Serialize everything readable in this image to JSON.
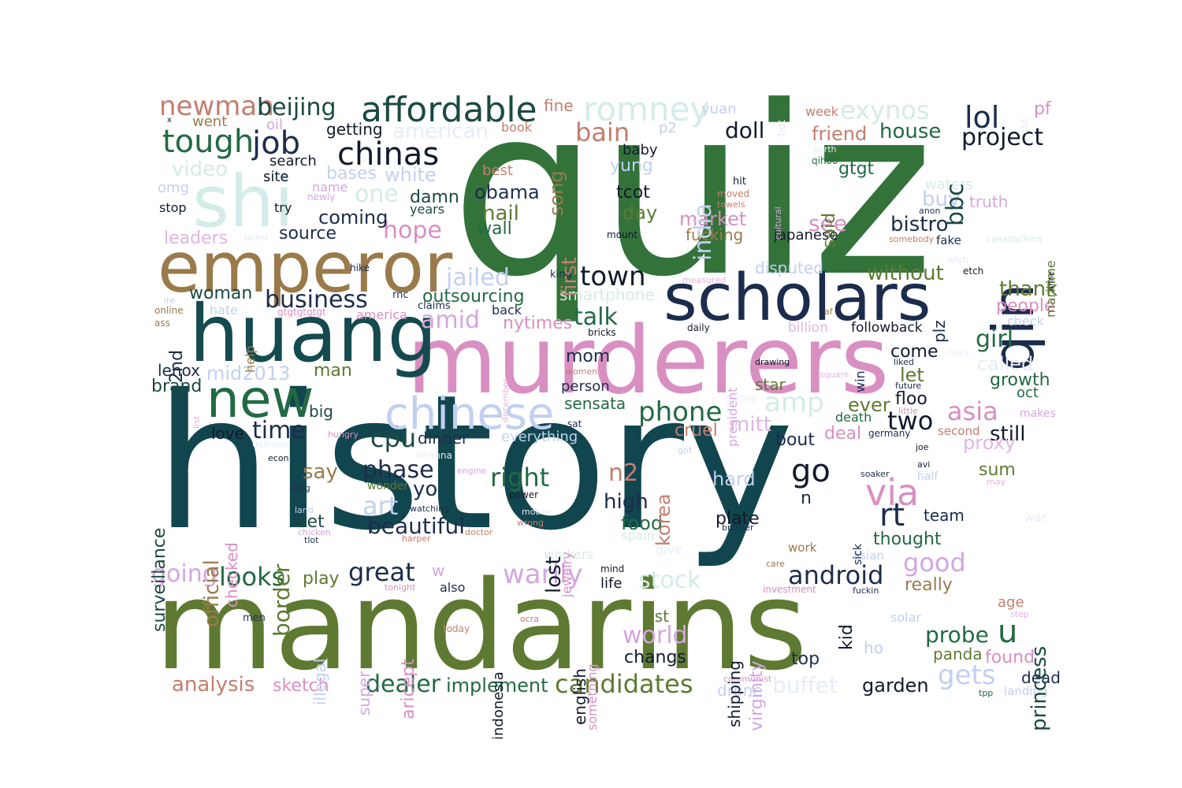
{
  "words": [
    {
      "text": "history",
      "color": "#12464f"
    },
    {
      "text": "quiz",
      "color": "#33733a"
    },
    {
      "text": "mandarins",
      "color": "#5e7a32"
    },
    {
      "text": "murderers",
      "color": "#d98fc2"
    },
    {
      "text": "huang",
      "color": "#154a4f"
    },
    {
      "text": "scholars",
      "color": "#1c2c4c"
    },
    {
      "text": "emperor",
      "color": "#9a7a4a"
    },
    {
      "text": "shi",
      "color": "#d3ece8"
    },
    {
      "text": "qin",
      "color": "#1c2c4c"
    },
    {
      "text": "chinese",
      "color": "#c2d0f0"
    },
    {
      "text": "new",
      "color": "#226a44"
    },
    {
      "text": "affordable",
      "color": "#1b4a42"
    },
    {
      "text": "romney",
      "color": "#d3ece8"
    },
    {
      "text": "chinas",
      "color": "#121a2c"
    },
    {
      "text": "tough",
      "color": "#226a44"
    },
    {
      "text": "job",
      "color": "#1c2c4c"
    },
    {
      "text": "newman",
      "color": "#c47e6e"
    },
    {
      "text": "beijing",
      "color": "#1b4a42"
    },
    {
      "text": "exynos",
      "color": "#d3ece8"
    },
    {
      "text": "lol",
      "color": "#1c2c4c"
    },
    {
      "text": "project",
      "color": "#121a2c"
    },
    {
      "text": "bain",
      "color": "#c47e6e"
    },
    {
      "text": "doll",
      "color": "#121a2c"
    },
    {
      "text": "friend",
      "color": "#c47e6e"
    },
    {
      "text": "house",
      "color": "#226a44"
    },
    {
      "text": "video",
      "color": "#d3ece8"
    },
    {
      "text": "one",
      "color": "#d3ece8"
    },
    {
      "text": "white",
      "color": "#c2d0f0"
    },
    {
      "text": "american",
      "color": "#e6ecf8"
    },
    {
      "text": "obama",
      "color": "#1c2c4c"
    },
    {
      "text": "nail",
      "color": "#5e7a32"
    },
    {
      "text": "wall",
      "color": "#226a44"
    },
    {
      "text": "hope",
      "color": "#d98fc2"
    },
    {
      "text": "coming",
      "color": "#1c2c4c"
    },
    {
      "text": "source",
      "color": "#1c2c4c"
    },
    {
      "text": "leaders",
      "color": "#e0b6de"
    },
    {
      "text": "jailed",
      "color": "#c2d0f0"
    },
    {
      "text": "outsourcing",
      "color": "#226a44"
    },
    {
      "text": "business",
      "color": "#1c2c4c"
    },
    {
      "text": "town",
      "color": "#121a2c"
    },
    {
      "text": "woman",
      "color": "#1b4a42"
    },
    {
      "text": "amid",
      "color": "#d4a6e0"
    },
    {
      "text": "nytimes",
      "color": "#d98fc2"
    },
    {
      "text": "talk",
      "color": "#226a44"
    },
    {
      "text": "market",
      "color": "#d98fc2"
    },
    {
      "text": "fucking",
      "color": "#9a7a4a"
    },
    {
      "text": "japanese",
      "color": "#121a2c"
    },
    {
      "text": "see",
      "color": "#d98fc2"
    },
    {
      "text": "bistro",
      "color": "#1c2c4c"
    },
    {
      "text": "without",
      "color": "#5e7a32"
    },
    {
      "text": "thank",
      "color": "#5e7a32"
    },
    {
      "text": "people",
      "color": "#d98fc2"
    },
    {
      "text": "gtgt",
      "color": "#226a44"
    },
    {
      "text": "buy",
      "color": "#c2d0f0"
    },
    {
      "text": "truth",
      "color": "#d4a6e0"
    },
    {
      "text": "waters",
      "color": "#d3ece8"
    },
    {
      "text": "girl",
      "color": "#226a44"
    },
    {
      "text": "called",
      "color": "#e6ecf8"
    },
    {
      "text": "growth",
      "color": "#226a44"
    },
    {
      "text": "come",
      "color": "#121a2c"
    },
    {
      "text": "let",
      "color": "#5e7a32"
    },
    {
      "text": "floo",
      "color": "#121a2c"
    },
    {
      "text": "star",
      "color": "#5e7a32"
    },
    {
      "text": "asia",
      "color": "#d98fc2"
    },
    {
      "text": "ever",
      "color": "#5e7a32"
    },
    {
      "text": "two",
      "color": "#121a2c"
    },
    {
      "text": "deal",
      "color": "#d98fc2"
    },
    {
      "text": "still",
      "color": "#121a2c"
    },
    {
      "text": "proxy",
      "color": "#e0b6de"
    },
    {
      "text": "bout",
      "color": "#1c2c4c"
    },
    {
      "text": "sum",
      "color": "#5e7a32"
    },
    {
      "text": "phone",
      "color": "#226a44"
    },
    {
      "text": "mitt",
      "color": "#e0b6de"
    },
    {
      "text": "cruel",
      "color": "#c47e6e"
    },
    {
      "text": "amp",
      "color": "#d3ece8"
    },
    {
      "text": "sensata",
      "color": "#226a44"
    },
    {
      "text": "mom",
      "color": "#1c2c4c"
    },
    {
      "text": "person",
      "color": "#1c2c4c"
    },
    {
      "text": "lenox",
      "color": "#1c2c4c"
    },
    {
      "text": "mid2013",
      "color": "#c2d0f0"
    },
    {
      "text": "man",
      "color": "#5e7a32"
    },
    {
      "text": "brand",
      "color": "#1b4a42"
    },
    {
      "text": "time",
      "color": "#1c2c4c"
    },
    {
      "text": "love",
      "color": "#121a2c"
    },
    {
      "text": "big",
      "color": "#1b4a42"
    },
    {
      "text": "cpu",
      "color": "#1b4a42"
    },
    {
      "text": "dinner",
      "color": "#1c2c4c"
    },
    {
      "text": "everything",
      "color": "#c2d0f0"
    },
    {
      "text": "say",
      "color": "#9a7a4a"
    },
    {
      "text": "phase",
      "color": "#1c2c4c"
    },
    {
      "text": "right",
      "color": "#226a44"
    },
    {
      "text": "n2",
      "color": "#c47e6e"
    },
    {
      "text": "go",
      "color": "#121a2c"
    },
    {
      "text": "via",
      "color": "#d98fc2"
    },
    {
      "text": "rt",
      "color": "#1c2c4c"
    },
    {
      "text": "art",
      "color": "#c2d0f0"
    },
    {
      "text": "yo",
      "color": "#1c2c4c"
    },
    {
      "text": "beautiful",
      "color": "#1c2c4c"
    },
    {
      "text": "set",
      "color": "#1b4a42"
    },
    {
      "text": "high",
      "color": "#1c2c4c"
    },
    {
      "text": "food",
      "color": "#226a44"
    },
    {
      "text": "hard",
      "color": "#c2d0f0"
    },
    {
      "text": "plate",
      "color": "#121a2c"
    },
    {
      "text": "team",
      "color": "#1c2c4c"
    },
    {
      "text": "thought",
      "color": "#226a44"
    },
    {
      "text": "android",
      "color": "#1c2c4c"
    },
    {
      "text": "good",
      "color": "#d4a6e0"
    },
    {
      "text": "really",
      "color": "#9a7a4a"
    },
    {
      "text": "going",
      "color": "#d4a6e0"
    },
    {
      "text": "looks",
      "color": "#226a44"
    },
    {
      "text": "play",
      "color": "#5e7a32"
    },
    {
      "text": "great",
      "color": "#1c2c4c"
    },
    {
      "text": "warily",
      "color": "#d4a6e0"
    },
    {
      "text": "stock",
      "color": "#d3ece8"
    },
    {
      "text": "life",
      "color": "#121a2c"
    },
    {
      "text": "world",
      "color": "#d4a6e0"
    },
    {
      "text": "changs",
      "color": "#121a2c"
    },
    {
      "text": "1st",
      "color": "#5e7a32"
    },
    {
      "text": "probe",
      "color": "#226a44"
    },
    {
      "text": "u",
      "color": "#226a44"
    },
    {
      "text": "panda",
      "color": "#5e7a32"
    },
    {
      "text": "found",
      "color": "#d98fc2"
    },
    {
      "text": "top",
      "color": "#1c2c4c"
    },
    {
      "text": "gets",
      "color": "#c2d0f0"
    },
    {
      "text": "garden",
      "color": "#121a2c"
    },
    {
      "text": "dead",
      "color": "#1c2c4c"
    },
    {
      "text": "analysis",
      "color": "#c47e6e"
    },
    {
      "text": "sketch",
      "color": "#d98fc2"
    },
    {
      "text": "dealer",
      "color": "#226a44"
    },
    {
      "text": "implement",
      "color": "#226a44"
    },
    {
      "text": "candidates",
      "color": "#5e7a32"
    },
    {
      "text": "buffet",
      "color": "#e6ecf8"
    },
    {
      "text": "drone",
      "color": "#c2d0f0"
    },
    {
      "text": "baby",
      "color": "#121a2c"
    },
    {
      "text": "yung",
      "color": "#c2d0f0"
    },
    {
      "text": "tcot",
      "color": "#121a2c"
    },
    {
      "text": "day",
      "color": "#5e7a32"
    },
    {
      "text": "search",
      "color": "#121a2c"
    },
    {
      "text": "site",
      "color": "#121a2c"
    },
    {
      "text": "bases",
      "color": "#c2d0f0"
    },
    {
      "text": "damn",
      "color": "#1b4a42"
    },
    {
      "text": "years",
      "color": "#1b4a42"
    },
    {
      "text": "best",
      "color": "#c47e6e"
    },
    {
      "text": "getting",
      "color": "#121a2c"
    },
    {
      "text": "fine",
      "color": "#c47e6e"
    },
    {
      "text": "book",
      "color": "#c47e6e"
    },
    {
      "text": "p2",
      "color": "#c2d0f0"
    },
    {
      "text": "yuan",
      "color": "#c2d0f0"
    },
    {
      "text": "week",
      "color": "#c47e6e"
    },
    {
      "text": "pf",
      "color": "#d98fc2"
    },
    {
      "text": "went",
      "color": "#9a7a4a"
    },
    {
      "text": "oil",
      "color": "#d4a6e0"
    },
    {
      "text": "omg",
      "color": "#c2d0f0"
    },
    {
      "text": "name",
      "color": "#d4a6e0"
    },
    {
      "text": "newly",
      "color": "#d4a6e0"
    },
    {
      "text": "stop",
      "color": "#121a2c"
    },
    {
      "text": "try",
      "color": "#121a2c"
    },
    {
      "text": "hit",
      "color": "#121a2c"
    },
    {
      "text": "moved",
      "color": "#c47e6e"
    },
    {
      "text": "towels",
      "color": "#c47e6e"
    },
    {
      "text": "mount",
      "color": "#121a2c"
    },
    {
      "text": "anon",
      "color": "#1c2c4c"
    },
    {
      "text": "fake",
      "color": "#1c2c4c"
    },
    {
      "text": "somebody",
      "color": "#c47e6e"
    },
    {
      "text": "qihoo",
      "color": "#226a44"
    },
    {
      "text": "north",
      "color": "#e6ecf8"
    },
    {
      "text": "canadachina",
      "color": "#d3ece8"
    },
    {
      "text": "wish",
      "color": "#e6ecf8"
    },
    {
      "text": "etch",
      "color": "#121a2c"
    },
    {
      "text": "king",
      "color": "#1c2c4c"
    },
    {
      "text": "hike",
      "color": "#1c2c4c"
    },
    {
      "text": "latest",
      "color": "#e6ecf8"
    },
    {
      "text": "measured",
      "color": "#e0b6de"
    },
    {
      "text": "disputed",
      "color": "#c2d0f0"
    },
    {
      "text": "smartphone",
      "color": "#d3ece8"
    },
    {
      "text": "claims",
      "color": "#1c2c4c"
    },
    {
      "text": "back",
      "color": "#1c2c4c"
    },
    {
      "text": "rnc",
      "color": "#1c2c4c"
    },
    {
      "text": "online",
      "color": "#9a7a4a"
    },
    {
      "text": "hate",
      "color": "#c2d0f0"
    },
    {
      "text": "gtgtgtgtgt",
      "color": "#d98fc2"
    },
    {
      "text": "america",
      "color": "#d98fc2"
    },
    {
      "text": "ass",
      "color": "#9a7a4a"
    },
    {
      "text": "ire",
      "color": "#c2d0f0"
    },
    {
      "text": "daily",
      "color": "#121a2c"
    },
    {
      "text": "bricks",
      "color": "#121a2c"
    },
    {
      "text": "followback",
      "color": "#121a2c"
    },
    {
      "text": "billion",
      "color": "#e0b6de"
    },
    {
      "text": "af",
      "color": "#9a7a4a"
    },
    {
      "text": "check",
      "color": "#c2d0f0"
    },
    {
      "text": "liked",
      "color": "#1c2c4c"
    },
    {
      "text": "future",
      "color": "#1c2c4c"
    },
    {
      "text": "risks",
      "color": "#e6ecf8"
    },
    {
      "text": "drawing",
      "color": "#121a2c"
    },
    {
      "text": "square",
      "color": "#e0b6de"
    },
    {
      "text": "death",
      "color": "#226a44"
    },
    {
      "text": "little",
      "color": "#d98fc2"
    },
    {
      "text": "oct",
      "color": "#226a44"
    },
    {
      "text": "makes",
      "color": "#d4a6e0"
    },
    {
      "text": "second",
      "color": "#c47e6e"
    },
    {
      "text": "germany",
      "color": "#1c2c4c"
    },
    {
      "text": "women",
      "color": "#c47e6e"
    },
    {
      "text": "trading",
      "color": "#e6ecf8"
    },
    {
      "text": "sat",
      "color": "#1c2c4c"
    },
    {
      "text": "hungry",
      "color": "#d98fc2"
    },
    {
      "text": "ugliness",
      "color": "#e6ecf8"
    },
    {
      "text": "econ",
      "color": "#121a2c"
    },
    {
      "text": "rihanna",
      "color": "#e6ecf8"
    },
    {
      "text": "engine",
      "color": "#d4a6e0"
    },
    {
      "text": "got",
      "color": "#c2d0f0"
    },
    {
      "text": "joe",
      "color": "#121a2c"
    },
    {
      "text": "avi",
      "color": "#121a2c"
    },
    {
      "text": "half",
      "color": "#c2d0f0"
    },
    {
      "text": "soaker",
      "color": "#1c2c4c"
    },
    {
      "text": "may",
      "color": "#e0b6de"
    },
    {
      "text": "long",
      "color": "#1c2c4c"
    },
    {
      "text": "wonder",
      "color": "#5e7a32"
    },
    {
      "text": "power",
      "color": "#121a2c"
    },
    {
      "text": "watching",
      "color": "#1c2c4c"
    },
    {
      "text": "land",
      "color": "#c2d0f0"
    },
    {
      "text": "chicken",
      "color": "#d4a6e0"
    },
    {
      "text": "tlot",
      "color": "#1c2c4c"
    },
    {
      "text": "harper",
      "color": "#c47e6e"
    },
    {
      "text": "wrong",
      "color": "#c47e6e"
    },
    {
      "text": "mobile",
      "color": "#e6ecf8"
    },
    {
      "text": "spain",
      "color": "#d3ece8"
    },
    {
      "text": "give",
      "color": "#e6ecf8"
    },
    {
      "text": "brother",
      "color": "#1c2c4c"
    },
    {
      "text": "work",
      "color": "#9a7a4a"
    },
    {
      "text": "war",
      "color": "#e6ecf8"
    },
    {
      "text": "workers",
      "color": "#d3ece8"
    },
    {
      "text": "w",
      "color": "#d4a6e0"
    },
    {
      "text": "asian",
      "color": "#c2d0f0"
    },
    {
      "text": "mind",
      "color": "#121a2c"
    },
    {
      "text": "care",
      "color": "#9a7a4a"
    },
    {
      "text": "investment",
      "color": "#d98fc2"
    },
    {
      "text": "fuckin",
      "color": "#1c2c4c"
    },
    {
      "text": "also",
      "color": "#1c2c4c"
    },
    {
      "text": "tonight",
      "color": "#d98fc2"
    },
    {
      "text": "men",
      "color": "#1c2c4c"
    },
    {
      "text": "today",
      "color": "#c47e6e"
    },
    {
      "text": "ocra",
      "color": "#c47e6e"
    },
    {
      "text": "solar",
      "color": "#c2d0f0"
    },
    {
      "text": "age",
      "color": "#c47e6e"
    },
    {
      "text": "step",
      "color": "#e0b6de"
    },
    {
      "text": "ho",
      "color": "#c2d0f0"
    },
    {
      "text": "communist",
      "color": "#d98fc2"
    },
    {
      "text": "tpp",
      "color": "#226a44"
    },
    {
      "text": "landing",
      "color": "#c2d0f0"
    },
    {
      "text": "doctor",
      "color": "#c47e6e"
    },
    {
      "text": "x",
      "color": "#121a2c"
    },
    {
      "text": "song",
      "color": "#9a7a4a"
    },
    {
      "text": "india",
      "color": "#c2d0f0"
    },
    {
      "text": "bbc",
      "color": "#1b4a42"
    },
    {
      "text": "said",
      "color": "#5e7a32"
    },
    {
      "text": "first",
      "color": "#c47e6e"
    },
    {
      "text": "plz",
      "color": "#1c2c4c"
    },
    {
      "text": "2nd",
      "color": "#1c2c4c"
    },
    {
      "text": "help",
      "color": "#9a7a4a"
    },
    {
      "text": "surveillance",
      "color": "#1b4a42"
    },
    {
      "text": "official",
      "color": "#9a7a4a"
    },
    {
      "text": "checked",
      "color": "#d98fc2"
    },
    {
      "text": "border",
      "color": "#5e7a32"
    },
    {
      "text": "lost",
      "color": "#121a2c"
    },
    {
      "text": "jewelry",
      "color": "#d98fc2"
    },
    {
      "text": "korea",
      "color": "#c47e6e"
    },
    {
      "text": "illegal",
      "color": "#c2d0f0"
    },
    {
      "text": "super",
      "color": "#d4a6e0"
    },
    {
      "text": "aricept",
      "color": "#d98fc2"
    },
    {
      "text": "indonesia",
      "color": "#121a2c"
    },
    {
      "text": "english",
      "color": "#121a2c"
    },
    {
      "text": "something",
      "color": "#d98fc2"
    },
    {
      "text": "shipping",
      "color": "#121a2c"
    },
    {
      "text": "virginity",
      "color": "#d4a6e0"
    },
    {
      "text": "kid",
      "color": "#121a2c"
    },
    {
      "text": "princess",
      "color": "#1b4a42"
    },
    {
      "text": "win",
      "color": "#1c2c4c"
    },
    {
      "text": "sick",
      "color": "#1c2c4c"
    },
    {
      "text": "president",
      "color": "#d4a6e0"
    },
    {
      "text": "december",
      "color": "#e0b6de"
    },
    {
      "text": "list",
      "color": "#e0b6de"
    },
    {
      "text": "cultural",
      "color": "#d4a6e0"
    },
    {
      "text": "bet",
      "color": "#e6ecf8"
    },
    {
      "text": "cut",
      "color": "#e6ecf8"
    },
    {
      "text": "maritime",
      "color": "#5e7a32"
    },
    {
      "text": "anne",
      "color": "#121a2c"
    },
    {
      "text": "n",
      "color": "#1c2c4c"
    }
  ]
}
